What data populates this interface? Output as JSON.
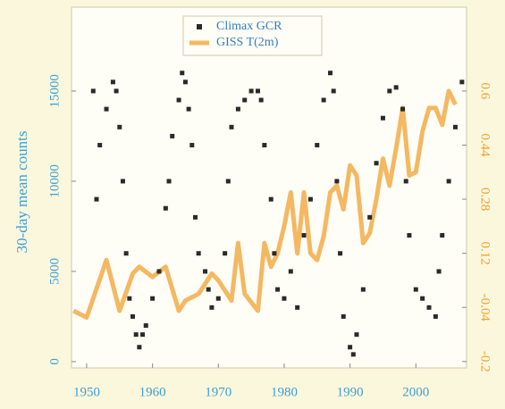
{
  "chart_data": {
    "type": "scatter-line",
    "y_label": "30-day mean counts",
    "xlim": [
      1947.7,
      2007.7
    ],
    "xticks": [
      1950,
      1960,
      1970,
      1980,
      1990,
      2000
    ],
    "ylim": [
      -350,
      19650
    ],
    "yticks": [
      0,
      5000,
      10000,
      15000
    ],
    "y2lim": [
      -0.219,
      0.848
    ],
    "y2ticks": [
      -0.2,
      -0.04,
      0.12,
      0.28,
      0.44,
      0.6
    ],
    "legend": "top",
    "series": [
      {
        "name": "Climax GCR",
        "color": "#2a2a2a",
        "kind": "scatter",
        "x": [
          1951,
          1951.5,
          1952,
          1953,
          1954,
          1954.5,
          1955,
          1955.5,
          1956,
          1956.5,
          1957,
          1957.5,
          1958,
          1958.5,
          1959,
          1960,
          1961,
          1962,
          1962.5,
          1963,
          1964,
          1964.5,
          1965,
          1965.5,
          1966,
          1966.5,
          1967,
          1968,
          1968.5,
          1969,
          1970,
          1971,
          1971.5,
          1972,
          1973,
          1974,
          1975,
          1976,
          1976.5,
          1977,
          1978,
          1978.5,
          1979,
          1980,
          1981,
          1982,
          1983,
          1984,
          1985,
          1986,
          1987,
          1987.5,
          1988,
          1988.5,
          1989,
          1990,
          1990.5,
          1991,
          1992,
          1993,
          1994,
          1995,
          1996,
          1997,
          1998,
          1998.5,
          1999,
          2000,
          2001,
          2002,
          2003,
          2003.5,
          2004,
          2005,
          2006,
          2007
        ],
        "values": [
          15000,
          9000,
          12000,
          14000,
          15500,
          15000,
          13000,
          10000,
          6000,
          3500,
          2500,
          1500,
          800,
          1500,
          2000,
          3500,
          5000,
          8500,
          10000,
          12500,
          14500,
          16000,
          15500,
          14000,
          12000,
          8000,
          6000,
          5000,
          4000,
          3000,
          3500,
          6000,
          10000,
          13000,
          14000,
          14500,
          15000,
          15000,
          14500,
          12000,
          9000,
          6000,
          4000,
          3500,
          5000,
          3000,
          7000,
          9000,
          12000,
          14500,
          16000,
          15000,
          10000,
          6000,
          2500,
          800,
          400,
          1500,
          4000,
          8000,
          11000,
          13500,
          15000,
          15200,
          14000,
          10000,
          7000,
          4000,
          3500,
          3000,
          2500,
          5000,
          7000,
          10000,
          13000,
          15500
        ]
      },
      {
        "name": "GISS T(2m)",
        "color": "#f0a030",
        "kind": "line",
        "axis": "y2",
        "x": [
          1948,
          1950,
          1953,
          1955,
          1957,
          1958,
          1960,
          1962,
          1964,
          1965,
          1967,
          1969,
          1970,
          1972,
          1973,
          1974,
          1976,
          1977,
          1978,
          1979,
          1980,
          1981,
          1982,
          1983,
          1984,
          1985,
          1986,
          1987,
          1988,
          1989,
          1990,
          1991,
          1992,
          1993,
          1994,
          1995,
          1996,
          1997,
          1998,
          1999,
          2000,
          2001,
          2002,
          2003,
          2004,
          2005,
          2006
        ],
        "values": [
          -0.05,
          -0.07,
          0.1,
          -0.05,
          0.06,
          0.08,
          0.05,
          0.08,
          -0.05,
          -0.02,
          0.0,
          0.06,
          0.04,
          -0.02,
          0.15,
          0.0,
          -0.05,
          0.15,
          0.08,
          0.12,
          0.2,
          0.3,
          0.12,
          0.3,
          0.12,
          0.1,
          0.17,
          0.3,
          0.32,
          0.25,
          0.38,
          0.35,
          0.15,
          0.18,
          0.28,
          0.4,
          0.32,
          0.43,
          0.55,
          0.35,
          0.36,
          0.48,
          0.55,
          0.55,
          0.5,
          0.6,
          0.56
        ]
      }
    ]
  }
}
